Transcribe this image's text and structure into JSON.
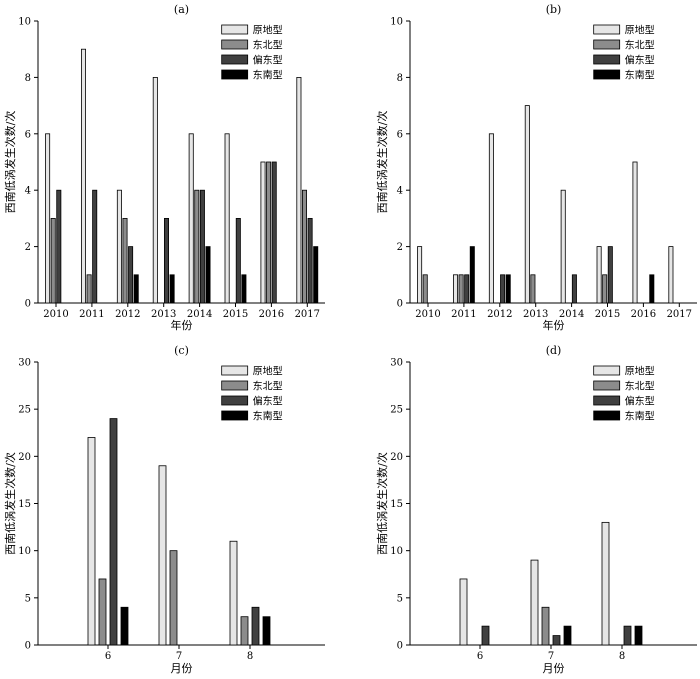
{
  "colors": {
    "原地型": "#e6e6e6",
    "东北型": "#8c8c8c",
    "偏东型": "#404040",
    "东南型": "#000000"
  },
  "chart_data": [
    {
      "type": "bar",
      "title": "(a)",
      "xlabel": "年份",
      "ylabel": "西南低涡发生次数/次",
      "ylim": [
        0,
        10
      ],
      "yticks": [
        0,
        2,
        4,
        6,
        8,
        10
      ],
      "categories": [
        "2010",
        "2011",
        "2012",
        "2013",
        "2014",
        "2015",
        "2016",
        "2017"
      ],
      "legend_position": "top-right",
      "series": [
        {
          "name": "原地型",
          "values": [
            6,
            9,
            4,
            8,
            6,
            6,
            5,
            8
          ]
        },
        {
          "name": "东北型",
          "values": [
            3,
            1,
            3,
            0,
            4,
            0,
            5,
            4
          ]
        },
        {
          "name": "偏东型",
          "values": [
            4,
            4,
            2,
            3,
            4,
            3,
            5,
            3
          ]
        },
        {
          "name": "东南型",
          "values": [
            0,
            0,
            1,
            1,
            2,
            1,
            0,
            2
          ]
        }
      ]
    },
    {
      "type": "bar",
      "title": "(b)",
      "xlabel": "年份",
      "ylabel": "西南低涡发生次数/次",
      "ylim": [
        0,
        10
      ],
      "yticks": [
        0,
        2,
        4,
        6,
        8,
        10
      ],
      "categories": [
        "2010",
        "2011",
        "2012",
        "2013",
        "2014",
        "2015",
        "2016",
        "2017"
      ],
      "legend_position": "top-right",
      "series": [
        {
          "name": "原地型",
          "values": [
            2,
            1,
            6,
            7,
            4,
            2,
            5,
            2
          ]
        },
        {
          "name": "东北型",
          "values": [
            1,
            1,
            0,
            1,
            0,
            1,
            0,
            0
          ]
        },
        {
          "name": "偏东型",
          "values": [
            0,
            1,
            1,
            0,
            1,
            2,
            0,
            0
          ]
        },
        {
          "name": "东南型",
          "values": [
            0,
            2,
            1,
            0,
            0,
            0,
            1,
            0
          ]
        }
      ]
    },
    {
      "type": "bar",
      "title": "(c)",
      "xlabel": "月份",
      "ylabel": "西南低涡发生次数/次",
      "ylim": [
        0,
        30
      ],
      "yticks": [
        0,
        5,
        10,
        15,
        20,
        25,
        30
      ],
      "categories": [
        "6",
        "7",
        "8"
      ],
      "legend_position": "top-right",
      "series": [
        {
          "name": "原地型",
          "values": [
            22,
            19,
            11
          ]
        },
        {
          "name": "东北型",
          "values": [
            7,
            10,
            3
          ]
        },
        {
          "name": "偏东型",
          "values": [
            24,
            0,
            4
          ]
        },
        {
          "name": "东南型",
          "values": [
            4,
            0,
            3
          ]
        }
      ]
    },
    {
      "type": "bar",
      "title": "(d)",
      "xlabel": "月份",
      "ylabel": "西南低涡发生次数/次",
      "ylim": [
        0,
        30
      ],
      "yticks": [
        0,
        5,
        10,
        15,
        20,
        25,
        30
      ],
      "categories": [
        "6",
        "7",
        "8"
      ],
      "legend_position": "top-right",
      "series": [
        {
          "name": "原地型",
          "values": [
            7,
            9,
            13
          ]
        },
        {
          "name": "东北型",
          "values": [
            0,
            4,
            0
          ]
        },
        {
          "name": "偏东型",
          "values": [
            2,
            1,
            2
          ]
        },
        {
          "name": "东南型",
          "values": [
            0,
            2,
            2
          ]
        }
      ]
    }
  ]
}
